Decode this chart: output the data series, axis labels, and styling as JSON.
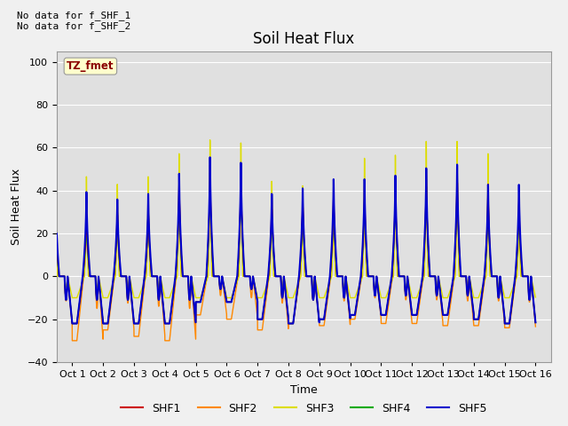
{
  "title": "Soil Heat Flux",
  "xlabel": "Time",
  "ylabel": "Soil Heat Flux",
  "ylim": [
    -40,
    105
  ],
  "yticks": [
    -40,
    -20,
    0,
    20,
    40,
    60,
    80,
    100
  ],
  "annotation_text": "No data for f_SHF_1\nNo data for f_SHF_2",
  "legend_label": "TZ_fmet",
  "legend_entries": [
    "SHF1",
    "SHF2",
    "SHF3",
    "SHF4",
    "SHF5"
  ],
  "legend_colors": [
    "#cc0000",
    "#ff8800",
    "#dddd00",
    "#00aa00",
    "#0000cc"
  ],
  "n_days": 16,
  "title_fontsize": 12,
  "axis_label_fontsize": 9,
  "tick_label_fontsize": 8,
  "figsize": [
    6.4,
    4.8
  ],
  "dpi": 100
}
